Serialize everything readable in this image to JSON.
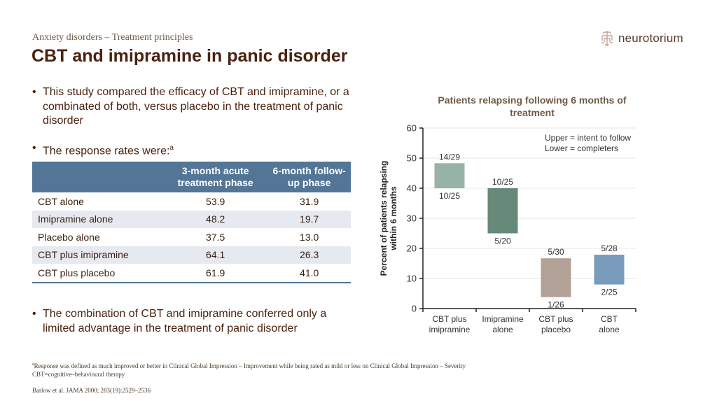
{
  "header": {
    "subtitle": "Anxiety disorders – Treatment principles",
    "title": "CBT and imipramine in panic disorder",
    "logo_text": "neurotorium",
    "logo_icon": "brain-circuit-icon"
  },
  "bullets": [
    {
      "text": "This study compared the efficacy of CBT and imipramine, or a combinated of both, versus placebo in the treatment of panic disorder"
    },
    {
      "text": "The response rates were:",
      "superscript": "a"
    },
    {
      "text": "The combination of CBT and imipramine conferred only a limited advantage in the treatment of panic disorder"
    }
  ],
  "table": {
    "headers": [
      "",
      "3-month acute treatment phase",
      "6-month follow-up phase"
    ],
    "rows": [
      {
        "label": "CBT alone",
        "acute": "53.9",
        "followup": "31.9"
      },
      {
        "label": "Imipramine alone",
        "acute": "48.2",
        "followup": "19.7"
      },
      {
        "label": "Placebo alone",
        "acute": "37.5",
        "followup": "13.0"
      },
      {
        "label": "CBT plus imipramine",
        "acute": "64.1",
        "followup": "26.3"
      },
      {
        "label": "CBT plus placebo",
        "acute": "61.9",
        "followup": "41.0"
      }
    ]
  },
  "footnotes": {
    "a": "Response was defined as much improved or better in Clinical Global Impression – Improvement while being rated as mild or less on Clinical Global Impression – Severity",
    "abbrev": "CBT=cognitive–behavioural therapy",
    "reference": "Barlow et al. JAMA 2000; 283(19):2529–2536"
  },
  "chart_data": {
    "type": "bar",
    "subtype": "floating-range",
    "title": "Patients relapsing following 6 months of treatment",
    "xlabel": "",
    "ylabel": "Percent of patients relapsing within 6 months",
    "ylim": [
      0,
      60
    ],
    "yticks": [
      0,
      10,
      20,
      30,
      40,
      50,
      60
    ],
    "grid": true,
    "legend_note": [
      "Upper = intent to follow",
      "Lower = completers"
    ],
    "legend_placement": "top-right",
    "categories": [
      "CBT plus imipramine",
      "Imipramine alone",
      "CBT plus placebo",
      "CBT alone"
    ],
    "series": [
      {
        "name": "Lower = completers",
        "values": [
          40.0,
          25.0,
          3.8,
          8.0
        ],
        "labels": [
          "10/25",
          "5/20",
          "1/26",
          "2/25"
        ]
      },
      {
        "name": "Upper = intent to follow",
        "values": [
          48.3,
          40.0,
          16.7,
          17.9
        ],
        "labels": [
          "14/29",
          "10/25",
          "5/30",
          "5/28"
        ]
      }
    ],
    "colors": [
      "#97b3a6",
      "#66897a",
      "#b1a197",
      "#7a9cbc"
    ]
  }
}
